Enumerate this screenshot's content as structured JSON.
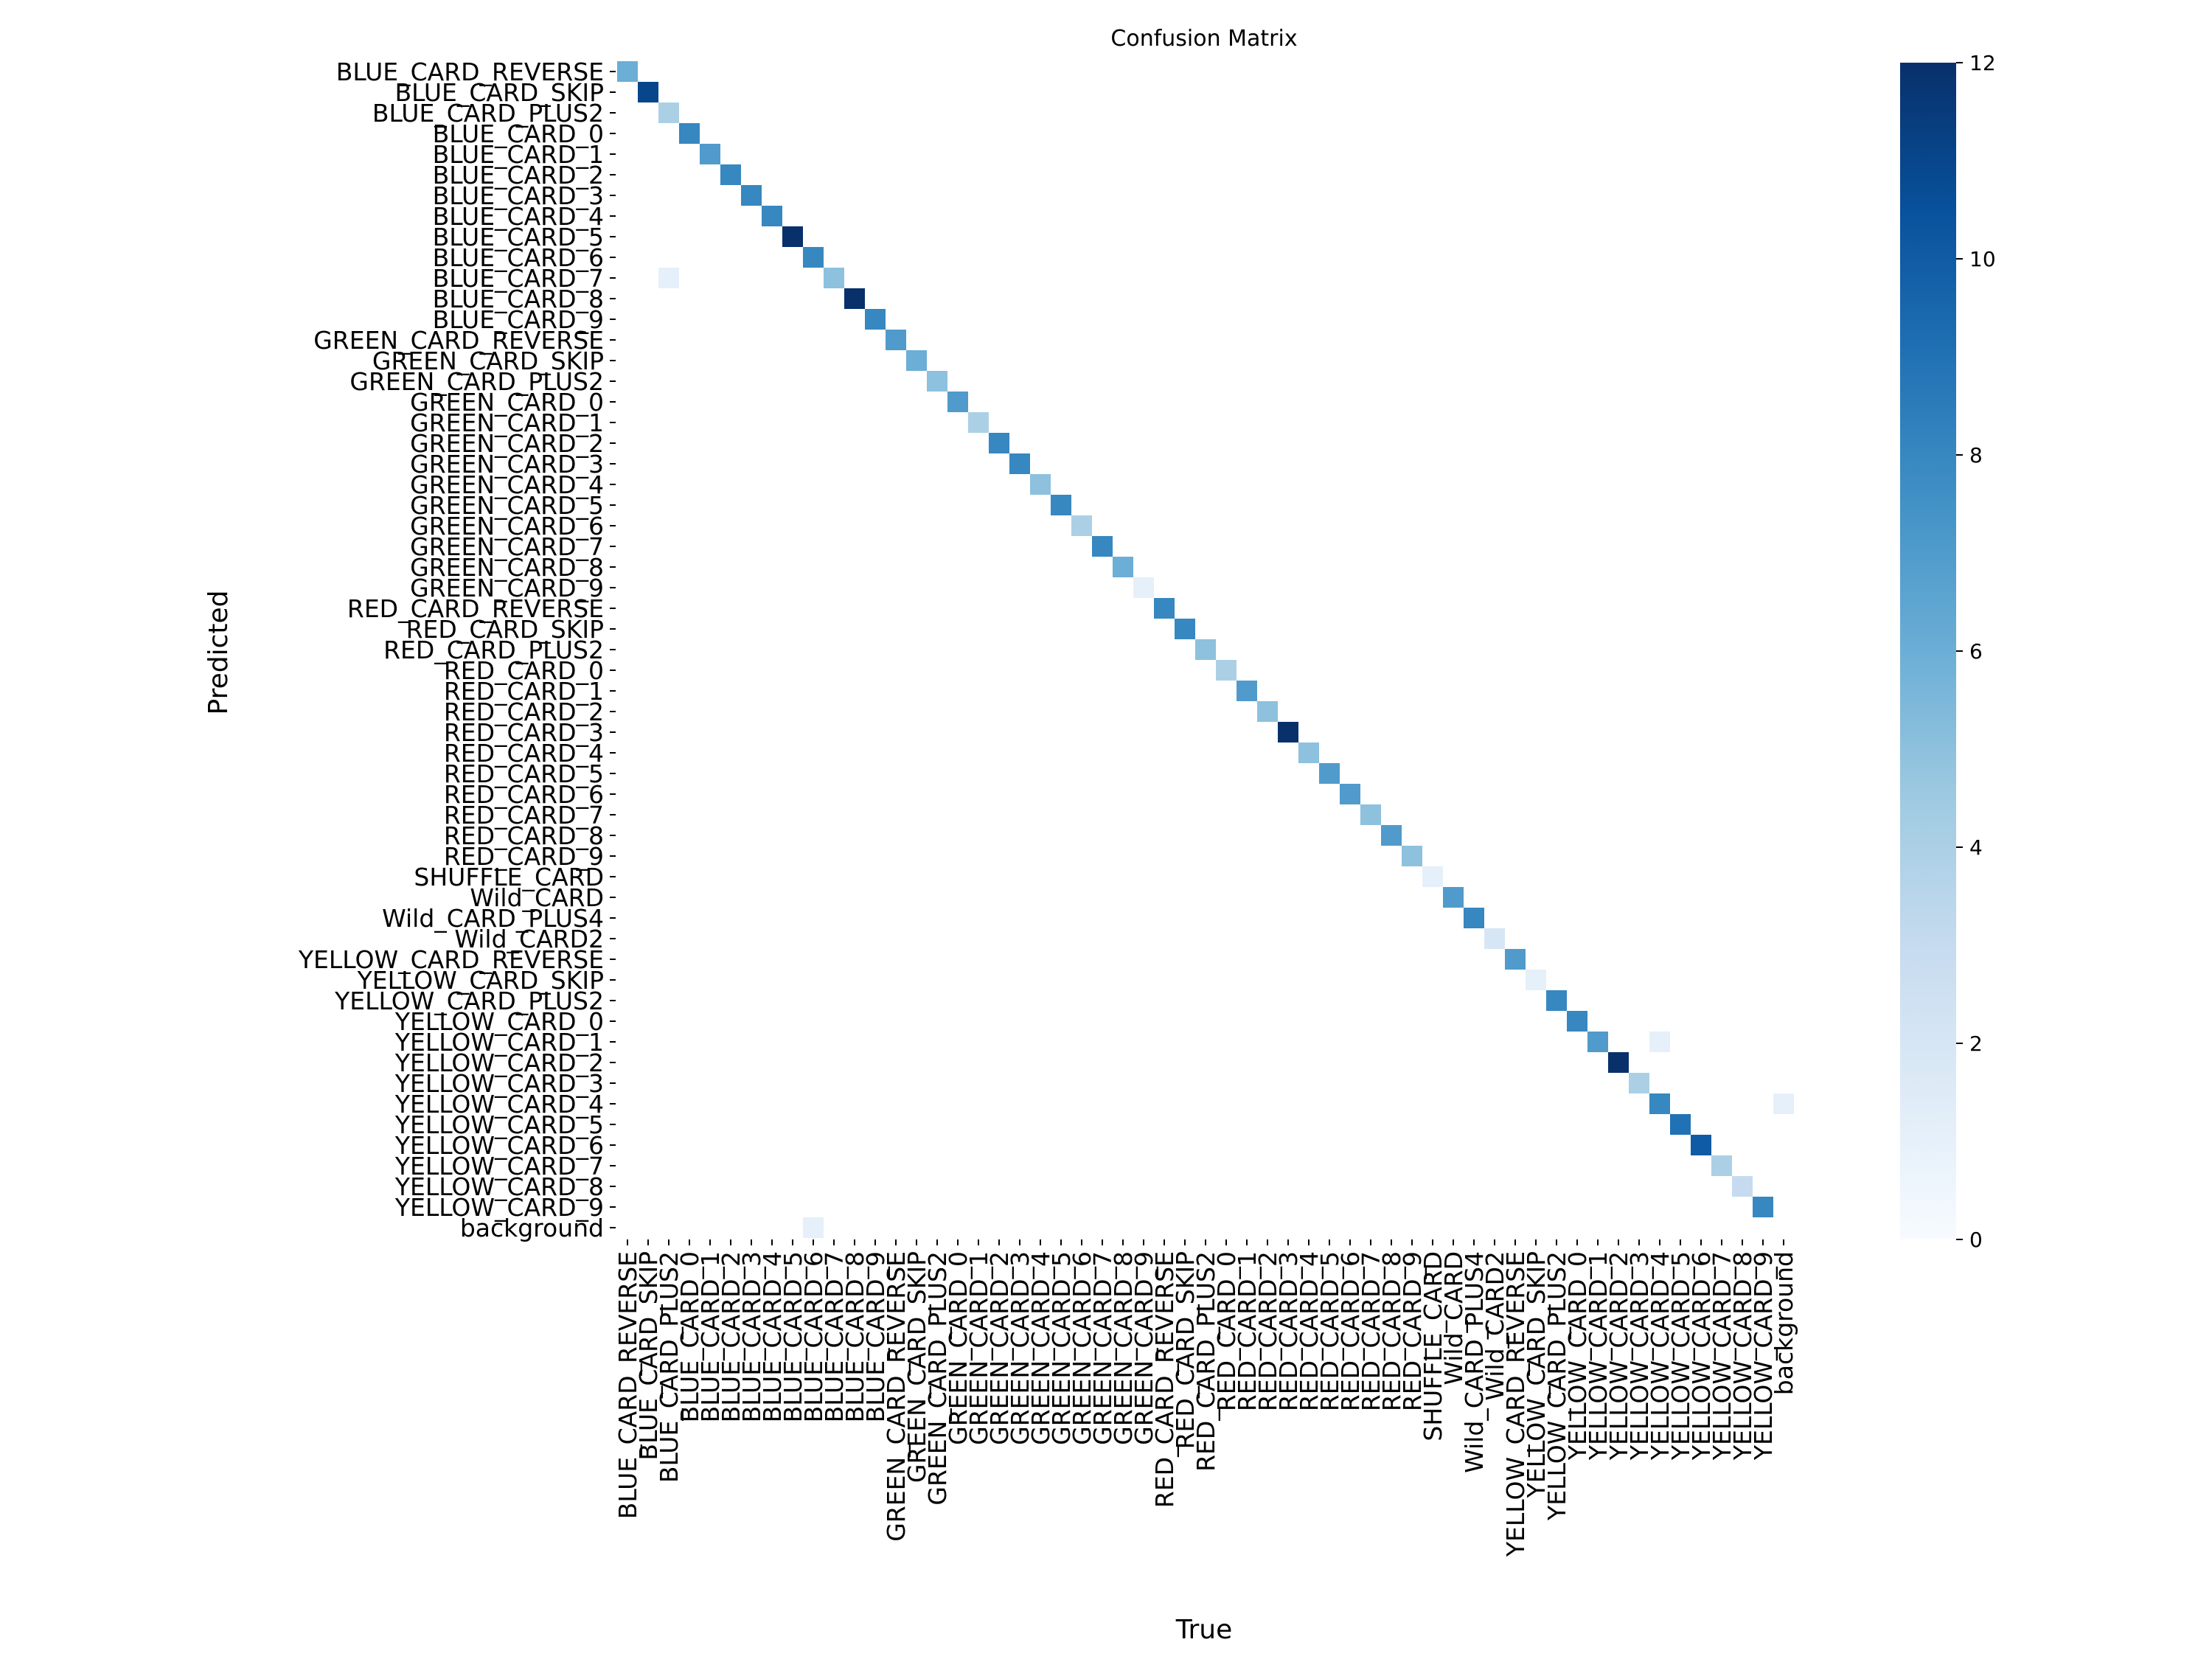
{
  "chart_data": {
    "type": "heatmap",
    "title": "Confusion Matrix",
    "xlabel": "True",
    "ylabel": "Predicted",
    "colormap": "Blues",
    "colors": {
      "low": "#f7fbff",
      "high": "#08306b"
    },
    "vmin": 0,
    "vmax": 12,
    "colorbar_ticks": [
      0,
      2,
      4,
      6,
      8,
      10,
      12
    ],
    "grid": false,
    "labels": [
      "BLUE_CARD_REVERSE",
      "BLUE_CARD_SKIP",
      "BLUE_CARD_PLUS2",
      "BLUE_CARD_0",
      "BLUE_CARD_1",
      "BLUE_CARD_2",
      "BLUE_CARD_3",
      "BLUE_CARD_4",
      "BLUE_CARD_5",
      "BLUE_CARD_6",
      "BLUE_CARD_7",
      "BLUE_CARD_8",
      "BLUE_CARD_9",
      "GREEN_CARD_REVERSE",
      "GREEN_CARD_SKIP",
      "GREEN_CARD_PLUS2",
      "GREEN_CARD_0",
      "GREEN_CARD_1",
      "GREEN_CARD_2",
      "GREEN_CARD_3",
      "GREEN_CARD_4",
      "GREEN_CARD_5",
      "GREEN_CARD_6",
      "GREEN_CARD_7",
      "GREEN_CARD_8",
      "GREEN_CARD_9",
      "RED_CARD_REVERSE",
      "RED_CARD_SKIP",
      "RED_CARD_PLUS2",
      "RED_CARD_0",
      "RED_CARD_1",
      "RED_CARD_2",
      "RED_CARD_3",
      "RED_CARD_4",
      "RED_CARD_5",
      "RED_CARD_6",
      "RED_CARD_7",
      "RED_CARD_8",
      "RED_CARD_9",
      "SHUFFLE_CARD",
      "Wild_CARD",
      "Wild_CARD_PLUS4",
      "Wild_CARD2",
      "YELLOW_CARD_REVERSE",
      "YELLOW_CARD_SKIP",
      "YELLOW_CARD_PLUS2",
      "YELLOW_CARD_0",
      "YELLOW_CARD_1",
      "YELLOW_CARD_2",
      "YELLOW_CARD_3",
      "YELLOW_CARD_4",
      "YELLOW_CARD_5",
      "YELLOW_CARD_6",
      "YELLOW_CARD_7",
      "YELLOW_CARD_8",
      "YELLOW_CARD_9",
      "background"
    ],
    "diagonal": [
      6,
      11,
      4,
      8,
      7,
      8,
      8,
      8,
      12,
      8,
      5,
      12,
      8,
      7,
      6,
      5,
      7,
      4,
      8,
      8,
      5,
      8,
      4,
      8,
      6,
      1,
      8,
      8,
      5,
      4,
      7,
      5,
      12,
      5,
      7,
      7,
      5,
      7,
      5,
      1,
      7,
      8,
      2,
      7,
      1,
      8,
      8,
      7,
      12,
      4,
      8,
      9,
      10,
      4,
      3,
      8,
      0
    ],
    "off_diagonal": [
      {
        "row": 10,
        "col": 2,
        "value": 1
      },
      {
        "row": 47,
        "col": 50,
        "value": 1
      },
      {
        "row": 50,
        "col": 56,
        "value": 1
      },
      {
        "row": 56,
        "col": 9,
        "value": 1
      }
    ]
  }
}
